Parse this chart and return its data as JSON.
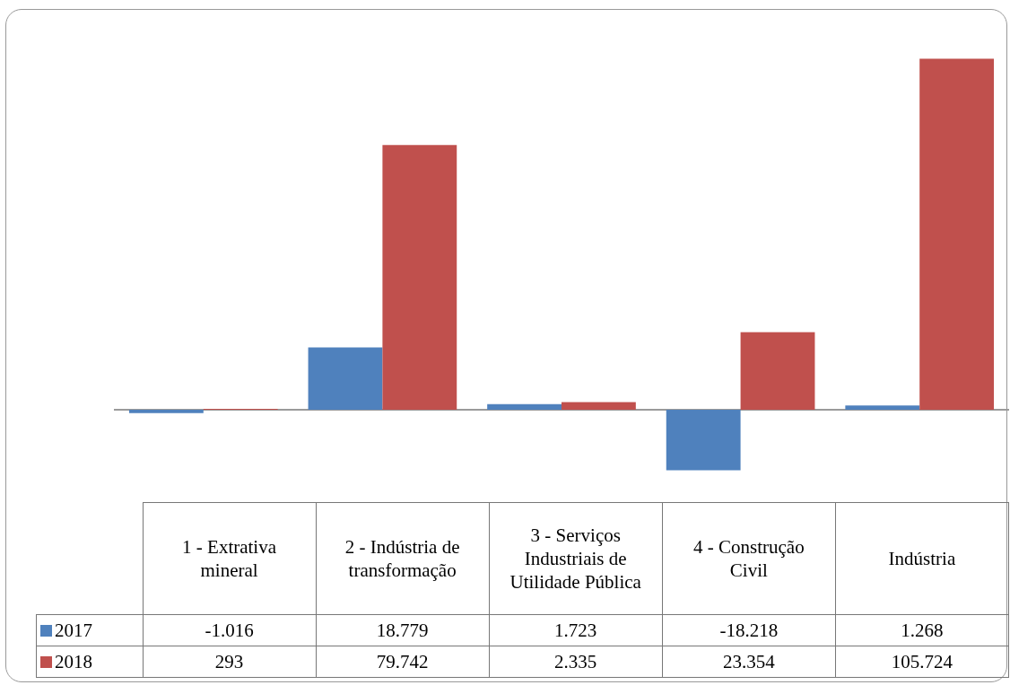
{
  "chart_data": {
    "type": "bar",
    "categories": [
      "1 - Extrativa mineral",
      "2 - Indústria de transformação",
      "3 - Serviços Industriais de Utilidade Pública",
      "4 - Construção Civil",
      "Indústria"
    ],
    "series": [
      {
        "name": "2017",
        "color": "#4f81bd",
        "values": [
          -1016,
          18779,
          1723,
          -18218,
          1268
        ],
        "value_labels": [
          "-1.016",
          "18.779",
          "1.723",
          "-18.218",
          "1.268"
        ]
      },
      {
        "name": "2018",
        "color": "#c0504d",
        "values": [
          293,
          79742,
          2335,
          23354,
          105724
        ],
        "value_labels": [
          "293",
          "79.742",
          "2.335",
          "23.354",
          "105.724"
        ]
      }
    ],
    "legend": "bottom left",
    "grid": false
  }
}
